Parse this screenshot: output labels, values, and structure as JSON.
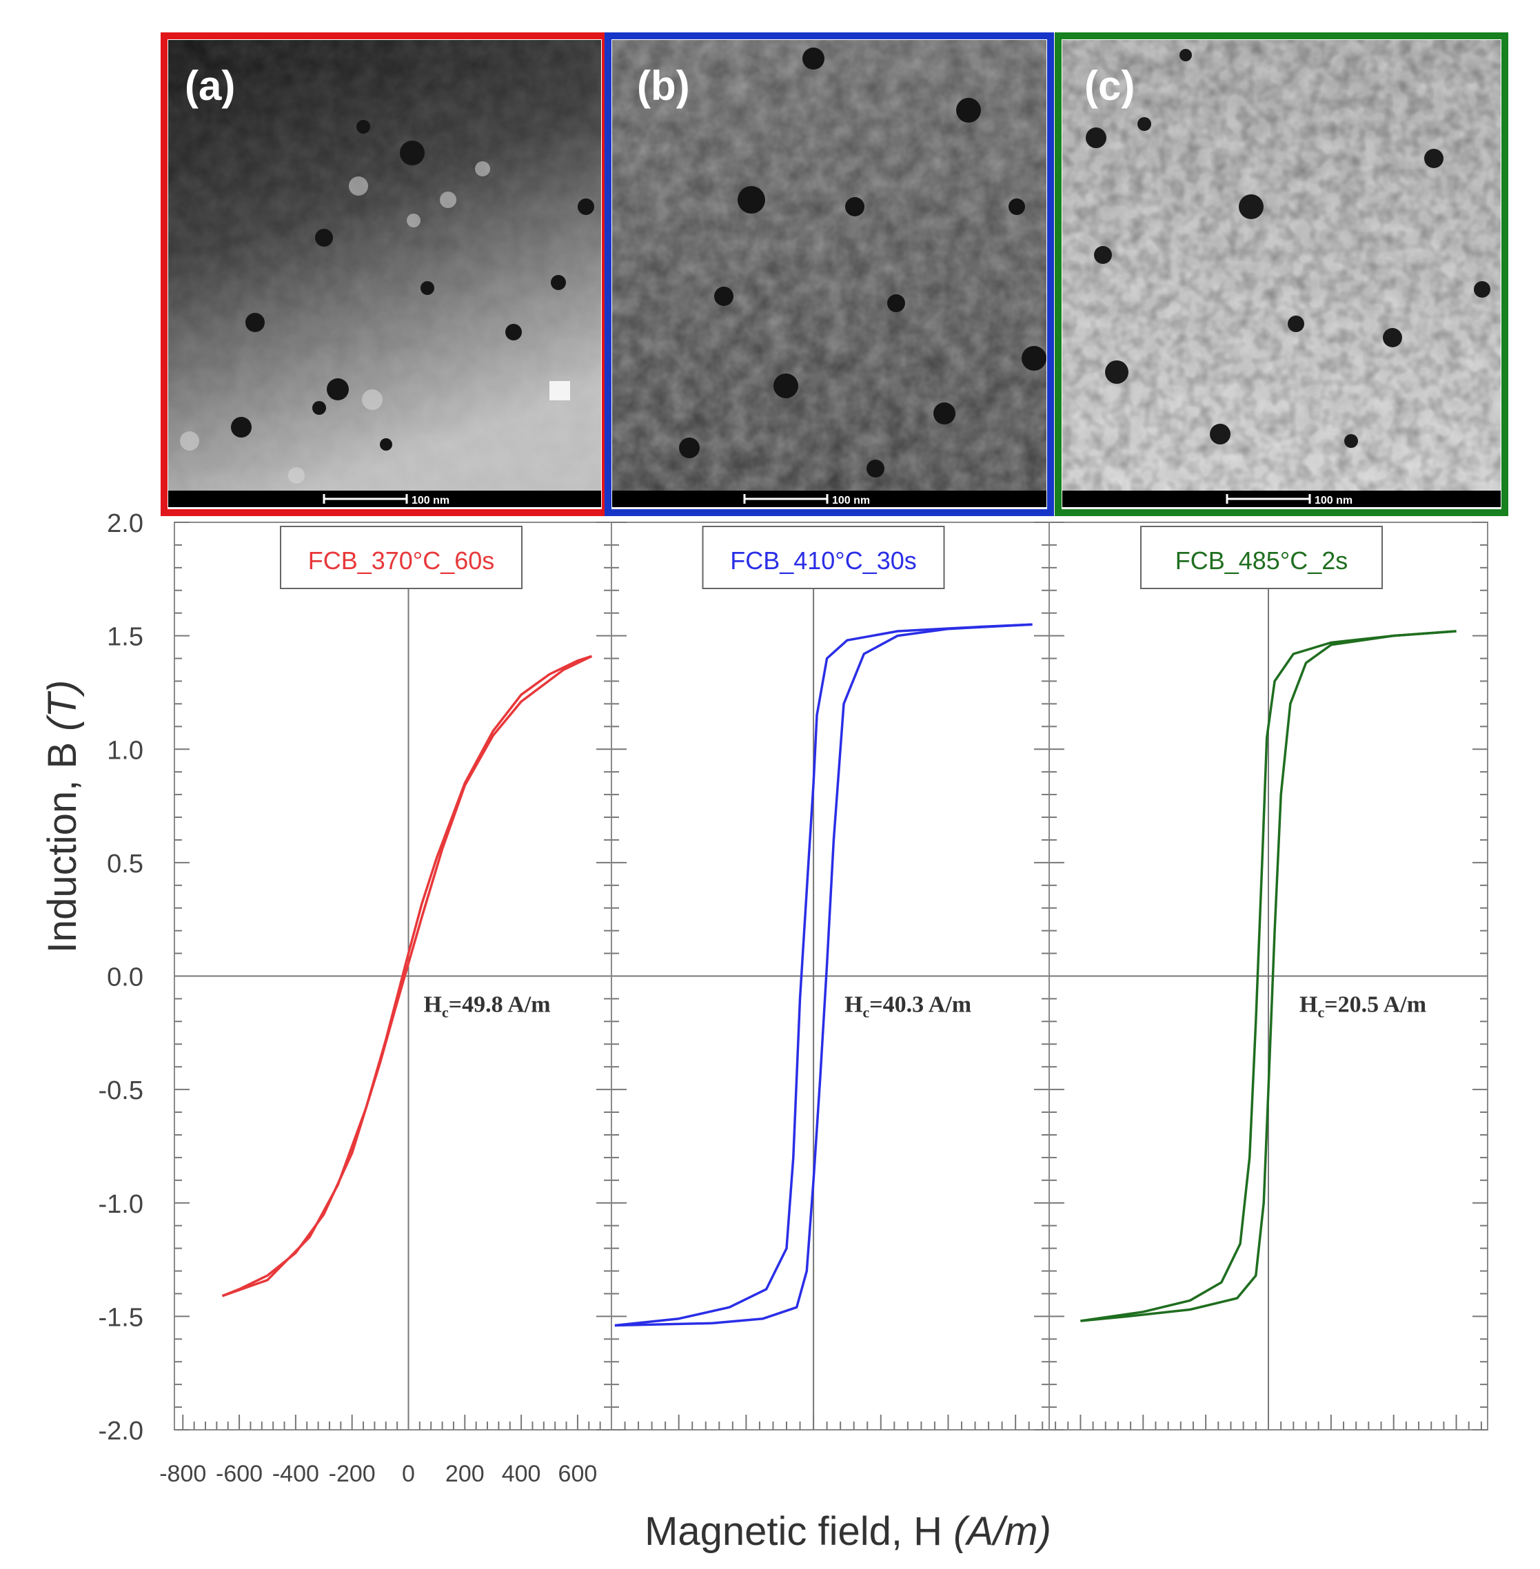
{
  "figure": {
    "y_axis_label": "Induction, B",
    "y_axis_unit": "(T)",
    "x_axis_label": "Magnetic field, H",
    "x_axis_unit": "(A/m)"
  },
  "micrographs": [
    {
      "panel_label": "(a)",
      "frame_color": "#e0161b",
      "scale_bar_text": "100 nm"
    },
    {
      "panel_label": "(b)",
      "frame_color": "#1736c8",
      "scale_bar_text": "100 nm"
    },
    {
      "panel_label": "(c)",
      "frame_color": "#17811f",
      "scale_bar_text": "100 nm"
    }
  ],
  "chart_data": [
    {
      "type": "line",
      "legend": "FCB_370°C_60s",
      "color": "#e8383a",
      "hc_prefix": "H",
      "hc_sub": "c",
      "hc_value": "=49.8  A/m",
      "x_range": [
        -830,
        720
      ],
      "y_range": [
        -2.0,
        2.0
      ],
      "x_tick_values": [
        -800,
        -600,
        -400,
        -200,
        0,
        200,
        400,
        600
      ],
      "x_tick_labels": [
        "-800",
        "-600",
        "-400",
        "-200",
        "0",
        "200",
        "400",
        "600"
      ],
      "y_tick_values": [
        -2.0,
        -1.5,
        -1.0,
        -0.5,
        0.0,
        0.5,
        1.0,
        1.5,
        2.0
      ],
      "y_tick_labels": [
        "-2.0",
        "-1.5",
        "-1.0",
        "-0.5",
        "0.0",
        "0.5",
        "1.0",
        "1.5",
        "2.0"
      ],
      "ascending_branch": [
        [
          -660,
          -1.41
        ],
        [
          -500,
          -1.34
        ],
        [
          -350,
          -1.15
        ],
        [
          -250,
          -0.92
        ],
        [
          -150,
          -0.58
        ],
        [
          -80,
          -0.28
        ],
        [
          0,
          0.1
        ],
        [
          48,
          0.32
        ],
        [
          100,
          0.52
        ],
        [
          200,
          0.85
        ],
        [
          300,
          1.08
        ],
        [
          400,
          1.24
        ],
        [
          500,
          1.33
        ],
        [
          600,
          1.39
        ],
        [
          650,
          1.41
        ]
      ],
      "descending_branch": [
        [
          650,
          1.41
        ],
        [
          550,
          1.35
        ],
        [
          400,
          1.21
        ],
        [
          300,
          1.06
        ],
        [
          200,
          0.84
        ],
        [
          120,
          0.56
        ],
        [
          50,
          0.27
        ],
        [
          -48,
          -0.15
        ],
        [
          -100,
          -0.38
        ],
        [
          -200,
          -0.78
        ],
        [
          -300,
          -1.05
        ],
        [
          -400,
          -1.22
        ],
        [
          -500,
          -1.32
        ],
        [
          -600,
          -1.38
        ],
        [
          -660,
          -1.41
        ]
      ]
    },
    {
      "type": "line",
      "legend": "FCB_410°C_30s",
      "color": "#2a2ee6",
      "hc_prefix": "H",
      "hc_sub": "c",
      "hc_value": "=40.3  A/m",
      "x_range": [
        -600,
        700
      ],
      "y_range": [
        -2.0,
        2.0
      ],
      "ascending_branch": [
        [
          -590,
          -1.54
        ],
        [
          -400,
          -1.51
        ],
        [
          -250,
          -1.46
        ],
        [
          -140,
          -1.38
        ],
        [
          -80,
          -1.2
        ],
        [
          -60,
          -0.8
        ],
        [
          -40,
          -0.1
        ],
        [
          -15,
          0.5
        ],
        [
          0,
          0.85
        ],
        [
          10,
          1.15
        ],
        [
          40,
          1.4
        ],
        [
          100,
          1.48
        ],
        [
          250,
          1.52
        ],
        [
          500,
          1.54
        ],
        [
          650,
          1.55
        ]
      ],
      "descending_branch": [
        [
          650,
          1.55
        ],
        [
          400,
          1.53
        ],
        [
          250,
          1.5
        ],
        [
          150,
          1.42
        ],
        [
          90,
          1.2
        ],
        [
          60,
          0.6
        ],
        [
          40,
          0.05
        ],
        [
          20,
          -0.45
        ],
        [
          0,
          -0.9
        ],
        [
          -20,
          -1.3
        ],
        [
          -50,
          -1.46
        ],
        [
          -150,
          -1.51
        ],
        [
          -300,
          -1.53
        ],
        [
          -590,
          -1.54
        ]
      ]
    },
    {
      "type": "line",
      "legend": "FCB_485°C_2s",
      "color": "#1f6e1f",
      "hc_prefix": "H",
      "hc_sub": "c",
      "hc_value": "=20.5  A/m",
      "x_range": [
        -700,
        700
      ],
      "y_range": [
        -2.0,
        2.0
      ],
      "ascending_branch": [
        [
          -600,
          -1.52
        ],
        [
          -400,
          -1.48
        ],
        [
          -250,
          -1.43
        ],
        [
          -150,
          -1.35
        ],
        [
          -90,
          -1.18
        ],
        [
          -60,
          -0.8
        ],
        [
          -40,
          -0.2
        ],
        [
          -20,
          0.5
        ],
        [
          -5,
          1.05
        ],
        [
          20,
          1.3
        ],
        [
          80,
          1.42
        ],
        [
          200,
          1.47
        ],
        [
          400,
          1.5
        ],
        [
          600,
          1.52
        ]
      ],
      "descending_branch": [
        [
          600,
          1.52
        ],
        [
          400,
          1.5
        ],
        [
          200,
          1.46
        ],
        [
          120,
          1.38
        ],
        [
          70,
          1.2
        ],
        [
          40,
          0.8
        ],
        [
          20,
          0.2
        ],
        [
          0,
          -0.5
        ],
        [
          -15,
          -1.0
        ],
        [
          -40,
          -1.32
        ],
        [
          -100,
          -1.42
        ],
        [
          -250,
          -1.47
        ],
        [
          -450,
          -1.5
        ],
        [
          -600,
          -1.52
        ]
      ]
    }
  ]
}
